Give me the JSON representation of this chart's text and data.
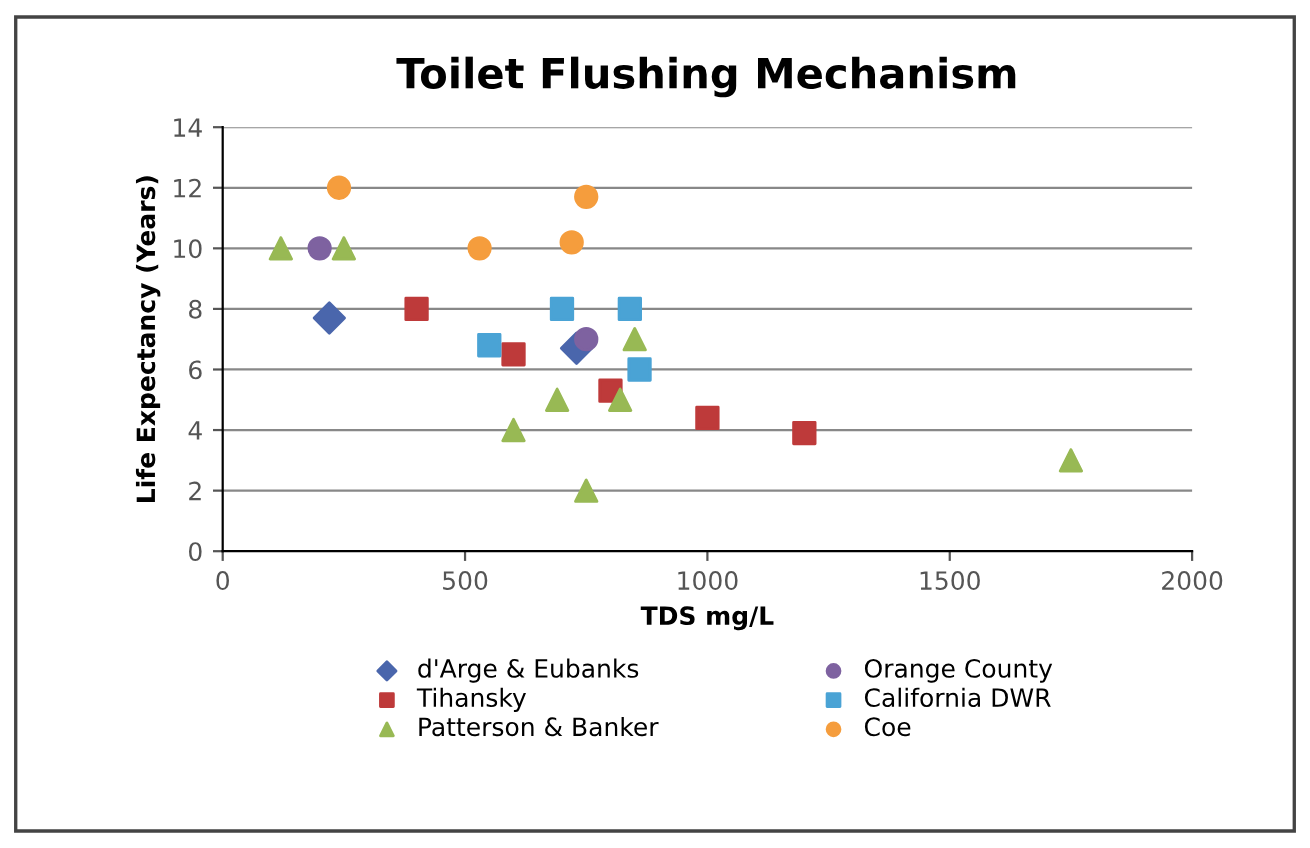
{
  "chart_data": {
    "type": "scatter",
    "title": "Toilet Flushing Mechanism",
    "xlabel": "TDS mg/L",
    "ylabel": "Life Expectancy (Years)",
    "xlim": [
      0,
      2000
    ],
    "xticks": [
      0,
      500,
      1000,
      1500,
      2000
    ],
    "ylim": [
      0,
      14
    ],
    "yticks": [
      0,
      2,
      4,
      6,
      8,
      10,
      12,
      14
    ],
    "grid": "y",
    "legend": "bottom",
    "series": [
      {
        "name": "d'Arge & Eubanks",
        "color": "#4a66ac",
        "marker": "diamond",
        "x": [
          220,
          730
        ],
        "values": [
          7.7,
          6.7
        ]
      },
      {
        "name": "Tihansky",
        "color": "#be3a3a",
        "marker": "square",
        "x": [
          400,
          600,
          800,
          1000,
          1200
        ],
        "values": [
          8,
          6.5,
          5.3,
          4.4,
          3.9
        ]
      },
      {
        "name": "Patterson & Banker",
        "color": "#98b954",
        "marker": "triangle",
        "x": [
          120,
          250,
          600,
          690,
          750,
          820,
          850,
          1750
        ],
        "values": [
          10,
          10,
          4,
          5,
          2,
          5,
          7,
          3
        ]
      },
      {
        "name": "Orange County",
        "color": "#7e62a0",
        "marker": "circle",
        "x": [
          200,
          750
        ],
        "values": [
          10,
          7
        ]
      },
      {
        "name": "California DWR",
        "color": "#4aa3d5",
        "marker": "square",
        "x": [
          550,
          700,
          840,
          860
        ],
        "values": [
          6.8,
          8,
          8,
          6
        ]
      },
      {
        "name": "Coe",
        "color": "#f59d3d",
        "marker": "circle",
        "x": [
          240,
          530,
          720,
          750
        ],
        "values": [
          12,
          10,
          10.2,
          11.7
        ]
      }
    ]
  }
}
